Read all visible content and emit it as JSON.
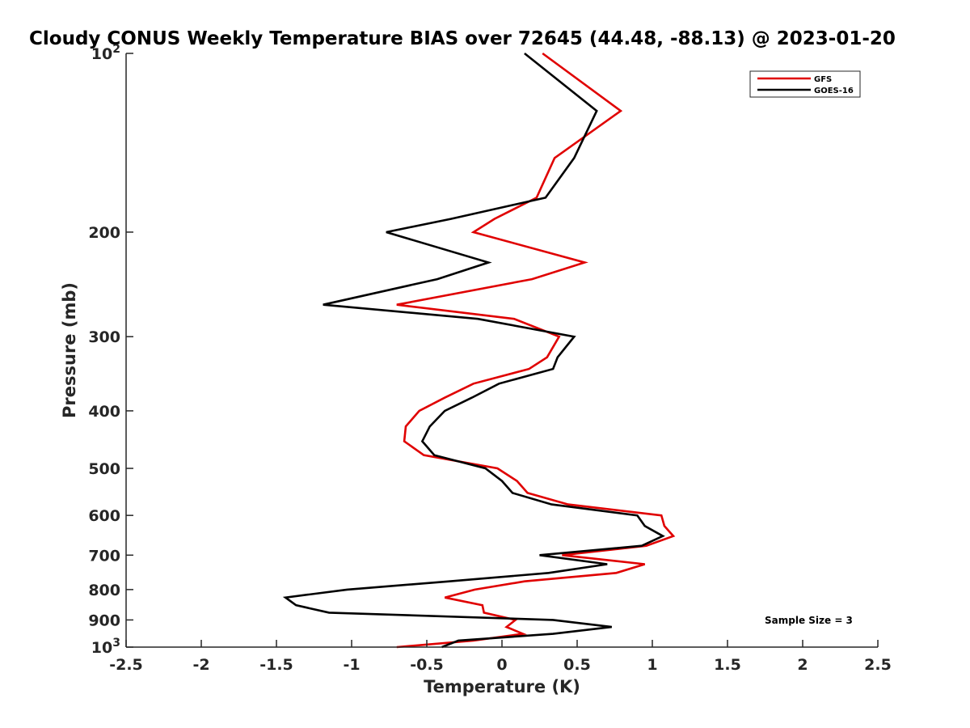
{
  "chart_data": {
    "type": "line",
    "title": "Cloudy CONUS Weekly Temperature BIAS over 72645 (44.48, -88.13) @ 2023-01-20",
    "xlabel": "Temperature (K)",
    "ylabel": "Pressure (mb)",
    "xlim": [
      -2.5,
      2.5
    ],
    "ylim": [
      100,
      1000
    ],
    "y_scale": "log",
    "y_reversed": true,
    "grid": false,
    "legend_position": "top-right",
    "x_ticks": [
      -2.5,
      -2,
      -1.5,
      -1,
      -0.5,
      0,
      0.5,
      1,
      1.5,
      2,
      2.5
    ],
    "x_tick_labels": [
      "-2.5",
      "-2",
      "-1.5",
      "-1",
      "-0.5",
      "0",
      "0.5",
      "1",
      "1.5",
      "2",
      "2.5"
    ],
    "y_ticks": [
      100,
      200,
      300,
      400,
      500,
      600,
      700,
      800,
      900,
      1000
    ],
    "y_tick_labels": [
      {
        "base": "10",
        "exp": "2"
      },
      {
        "base": "200",
        "exp": ""
      },
      {
        "base": "300",
        "exp": ""
      },
      {
        "base": "400",
        "exp": ""
      },
      {
        "base": "500",
        "exp": ""
      },
      {
        "base": "600",
        "exp": ""
      },
      {
        "base": "700",
        "exp": ""
      },
      {
        "base": "800",
        "exp": ""
      },
      {
        "base": "900",
        "exp": ""
      },
      {
        "base": "10",
        "exp": "3"
      }
    ],
    "annotation": "Sample Size = 3",
    "series": [
      {
        "name": "GFS",
        "color": "#e00000",
        "points": [
          [
            0.27,
            100
          ],
          [
            0.79,
            125
          ],
          [
            0.35,
            150
          ],
          [
            0.23,
            175
          ],
          [
            -0.05,
            190
          ],
          [
            -0.19,
            200
          ],
          [
            0.55,
            225
          ],
          [
            0.2,
            240
          ],
          [
            -0.7,
            265
          ],
          [
            0.08,
            280
          ],
          [
            0.38,
            300
          ],
          [
            0.3,
            325
          ],
          [
            0.18,
            340
          ],
          [
            -0.19,
            360
          ],
          [
            -0.38,
            380
          ],
          [
            -0.55,
            400
          ],
          [
            -0.64,
            425
          ],
          [
            -0.65,
            450
          ],
          [
            -0.52,
            475
          ],
          [
            -0.03,
            500
          ],
          [
            0.1,
            525
          ],
          [
            0.17,
            550
          ],
          [
            0.44,
            575
          ],
          [
            1.06,
            600
          ],
          [
            1.08,
            625
          ],
          [
            1.14,
            650
          ],
          [
            0.96,
            675
          ],
          [
            0.4,
            700
          ],
          [
            0.95,
            725
          ],
          [
            0.76,
            750
          ],
          [
            0.15,
            775
          ],
          [
            -0.18,
            800
          ],
          [
            -0.38,
            825
          ],
          [
            -0.13,
            850
          ],
          [
            -0.12,
            875
          ],
          [
            0.09,
            900
          ],
          [
            0.03,
            925
          ],
          [
            0.14,
            950
          ],
          [
            -0.19,
            975
          ],
          [
            -0.7,
            1000
          ]
        ]
      },
      {
        "name": "GOES-16",
        "color": "#000000",
        "points": [
          [
            0.15,
            100
          ],
          [
            0.63,
            125
          ],
          [
            0.48,
            150
          ],
          [
            0.29,
            175
          ],
          [
            -0.34,
            190
          ],
          [
            -0.77,
            200
          ],
          [
            -0.09,
            225
          ],
          [
            -0.43,
            240
          ],
          [
            -1.19,
            265
          ],
          [
            -0.16,
            280
          ],
          [
            0.48,
            300
          ],
          [
            0.37,
            325
          ],
          [
            0.34,
            340
          ],
          [
            -0.02,
            360
          ],
          [
            -0.2,
            380
          ],
          [
            -0.38,
            400
          ],
          [
            -0.48,
            425
          ],
          [
            -0.53,
            450
          ],
          [
            -0.45,
            475
          ],
          [
            -0.11,
            500
          ],
          [
            0.0,
            525
          ],
          [
            0.07,
            550
          ],
          [
            0.33,
            575
          ],
          [
            0.9,
            600
          ],
          [
            0.95,
            625
          ],
          [
            1.07,
            650
          ],
          [
            0.93,
            675
          ],
          [
            0.25,
            700
          ],
          [
            0.7,
            725
          ],
          [
            0.31,
            750
          ],
          [
            -0.35,
            775
          ],
          [
            -1.03,
            800
          ],
          [
            -1.44,
            825
          ],
          [
            -1.37,
            850
          ],
          [
            -1.15,
            875
          ],
          [
            0.34,
            900
          ],
          [
            0.73,
            925
          ],
          [
            0.34,
            950
          ],
          [
            -0.29,
            975
          ],
          [
            -0.4,
            1000
          ]
        ]
      }
    ]
  }
}
